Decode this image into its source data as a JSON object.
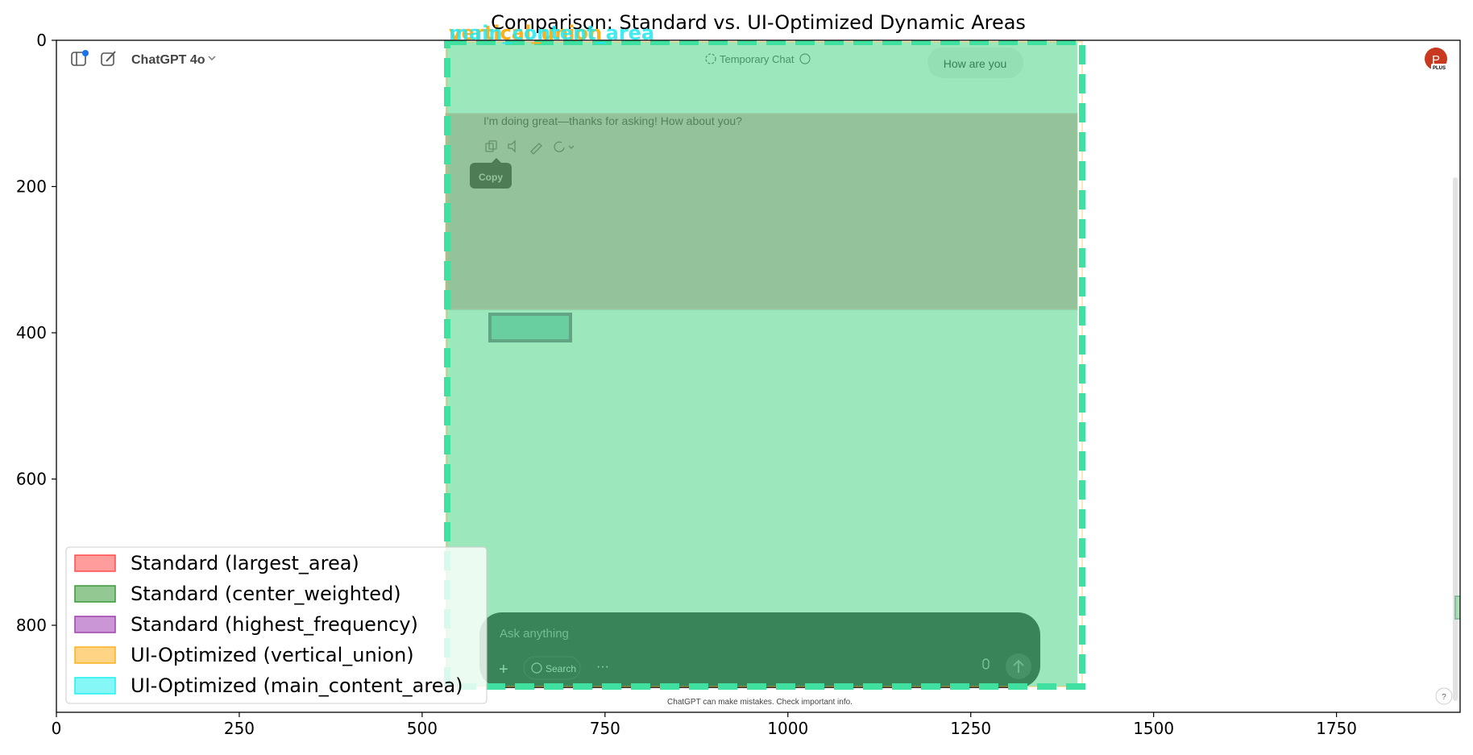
{
  "chart_data": {
    "type": "image-overlay",
    "title": "Comparison: Standard vs. UI-Optimized Dynamic Areas",
    "xlim": [
      0,
      1919
    ],
    "ylim": [
      919,
      0
    ],
    "x_ticks": [
      0,
      250,
      500,
      750,
      1000,
      1250,
      1500,
      1750
    ],
    "y_ticks": [
      0,
      200,
      400,
      600,
      800
    ],
    "legend": {
      "placement": "lower-left",
      "entries": [
        {
          "label": "Standard (largest_area)",
          "color": "#ff4d4d"
        },
        {
          "label": "Standard (center_weighted)",
          "color": "#3a9a3a"
        },
        {
          "label": "Standard (highest_frequency)",
          "color": "#a040b0"
        },
        {
          "label": "UI-Optimized (vertical_union)",
          "color": "#ffb020"
        },
        {
          "label": "UI-Optimized (main_content_area)",
          "color": "#20f0f0"
        }
      ]
    },
    "overlay_labels": [
      {
        "text": "vertical_union",
        "color": "#ffb020"
      },
      {
        "text": "main_content_area",
        "color": "#20e8f0"
      }
    ],
    "regions": [
      {
        "method": "largest_area",
        "x": [
          533,
          1385
        ],
        "y": [
          100,
          368
        ]
      },
      {
        "method": "center_weighted",
        "x": [
          533,
          1385
        ],
        "y": [
          0,
          880
        ]
      },
      {
        "method": "highest_frequency",
        "x": [
          533,
          1385
        ],
        "y": [
          100,
          368
        ]
      },
      {
        "method": "vertical_union",
        "x": [
          533,
          1385
        ],
        "y": [
          0,
          880
        ]
      },
      {
        "method": "main_content_area",
        "x": [
          533,
          1385
        ],
        "y": [
          0,
          880
        ]
      }
    ]
  },
  "screenshot": {
    "model_label": "ChatGPT 4o",
    "temporary_chat_label": "Temporary Chat",
    "user_message": "How are you",
    "assistant_message": "I'm doing great—thanks for asking! How about you?",
    "tooltip": "Copy",
    "input_placeholder": "Ask anything",
    "search_label": "Search",
    "disclaimer": "ChatGPT can make mistakes. Check important info.",
    "avatar_letter": "P",
    "avatar_badge": "PLUS",
    "help_label": "?"
  }
}
